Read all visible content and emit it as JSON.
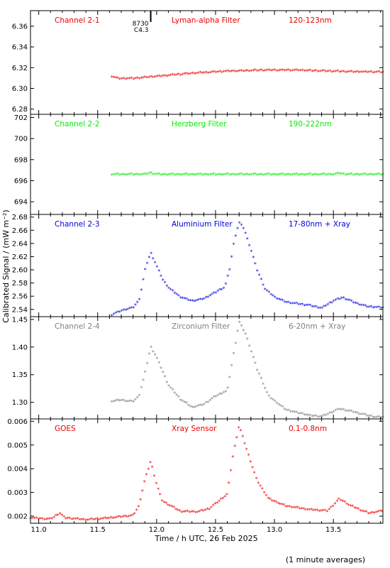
{
  "chart_data": {
    "type": "scatter",
    "ylabel": "Calibrated Signal / (mW m⁻²)",
    "xlabel": "Time / h UTC, 26 Feb 2025",
    "footnote": "(1 minute averages)",
    "x_range": [
      10.93,
      13.92
    ],
    "x_ticks": [
      "11.0",
      "11.5",
      "12.0",
      "12.5",
      "13.0",
      "13.5"
    ],
    "x_tick_values": [
      11.0,
      11.5,
      12.0,
      12.5,
      13.0,
      13.5
    ],
    "marker_labels": {
      "top": "8730",
      "bottom": "C4.3"
    },
    "marker_x": 11.95,
    "panels": [
      {
        "channel": "Channel 2-1",
        "filter": "Lyman-alpha Filter",
        "band": "120-123nm",
        "color": "#ee0000",
        "ylim": [
          6.275,
          6.375
        ],
        "yticks": [
          6.28,
          6.3,
          6.32,
          6.34,
          6.36
        ],
        "ytick_labels": [
          "6.28",
          "6.30",
          "6.32",
          "6.34",
          "6.36"
        ],
        "x_start": 11.62,
        "x_end": 13.92,
        "anchors": [
          [
            11.62,
            6.311
          ],
          [
            11.67,
            6.309
          ],
          [
            11.8,
            6.309
          ],
          [
            12.0,
            6.311
          ],
          [
            12.3,
            6.314
          ],
          [
            12.6,
            6.316
          ],
          [
            12.9,
            6.317
          ],
          [
            13.2,
            6.317
          ],
          [
            13.5,
            6.316
          ],
          [
            13.92,
            6.315
          ]
        ]
      },
      {
        "channel": "Channel 2-2",
        "filter": "Herzberg Filter",
        "band": "190-222nm",
        "color": "#00ee00",
        "ylim": [
          692.8,
          702.3
        ],
        "yticks": [
          694,
          696,
          698,
          700,
          702
        ],
        "ytick_labels": [
          "694",
          "696",
          "698",
          "700",
          "702"
        ],
        "x_start": 11.62,
        "x_end": 13.92,
        "anchors": [
          [
            11.62,
            696.55
          ],
          [
            11.9,
            696.55
          ],
          [
            11.95,
            696.7
          ],
          [
            12.0,
            696.55
          ],
          [
            13.5,
            696.55
          ],
          [
            13.55,
            696.65
          ],
          [
            13.6,
            696.55
          ],
          [
            13.92,
            696.55
          ]
        ]
      },
      {
        "channel": "Channel 2-3",
        "filter": "Aluminium Filter",
        "band": "17-80nm + Xray",
        "color": "#0000dd",
        "ylim": [
          2.529,
          2.684
        ],
        "yticks": [
          2.54,
          2.56,
          2.58,
          2.6,
          2.62,
          2.64,
          2.66,
          2.68
        ],
        "ytick_labels": [
          "2.54",
          "2.56",
          "2.58",
          "2.60",
          "2.62",
          "2.64",
          "2.66",
          "2.68"
        ],
        "x_start": 11.62,
        "x_end": 13.92,
        "anchors": [
          [
            11.62,
            2.531
          ],
          [
            11.7,
            2.537
          ],
          [
            11.8,
            2.542
          ],
          [
            11.85,
            2.552
          ],
          [
            11.88,
            2.578
          ],
          [
            11.91,
            2.605
          ],
          [
            11.95,
            2.625
          ],
          [
            12.0,
            2.605
          ],
          [
            12.05,
            2.585
          ],
          [
            12.1,
            2.572
          ],
          [
            12.2,
            2.558
          ],
          [
            12.3,
            2.552
          ],
          [
            12.4,
            2.555
          ],
          [
            12.5,
            2.565
          ],
          [
            12.58,
            2.573
          ],
          [
            12.62,
            2.6
          ],
          [
            12.66,
            2.645
          ],
          [
            12.7,
            2.671
          ],
          [
            12.74,
            2.662
          ],
          [
            12.8,
            2.63
          ],
          [
            12.85,
            2.6
          ],
          [
            12.92,
            2.57
          ],
          [
            13.0,
            2.558
          ],
          [
            13.1,
            2.55
          ],
          [
            13.3,
            2.545
          ],
          [
            13.4,
            2.541
          ],
          [
            13.5,
            2.552
          ],
          [
            13.58,
            2.557
          ],
          [
            13.7,
            2.548
          ],
          [
            13.8,
            2.543
          ],
          [
            13.92,
            2.542
          ]
        ]
      },
      {
        "channel": "Channel 2-4",
        "filter": "Zirconium Filter",
        "band": "6-20nm + Xray",
        "color": "#808080",
        "ylim": [
          1.27,
          1.455
        ],
        "yticks": [
          1.3,
          1.35,
          1.4,
          1.45
        ],
        "ytick_labels": [
          "1.30",
          "1.35",
          "1.40",
          "1.45"
        ],
        "x_start": 11.62,
        "x_end": 13.92,
        "anchors": [
          [
            11.62,
            1.301
          ],
          [
            11.7,
            1.303
          ],
          [
            11.8,
            1.3
          ],
          [
            11.85,
            1.31
          ],
          [
            11.9,
            1.35
          ],
          [
            11.95,
            1.4
          ],
          [
            12.0,
            1.38
          ],
          [
            12.1,
            1.33
          ],
          [
            12.2,
            1.305
          ],
          [
            12.3,
            1.29
          ],
          [
            12.4,
            1.295
          ],
          [
            12.5,
            1.31
          ],
          [
            12.6,
            1.32
          ],
          [
            12.64,
            1.37
          ],
          [
            12.7,
            1.445
          ],
          [
            12.76,
            1.42
          ],
          [
            12.85,
            1.36
          ],
          [
            12.95,
            1.31
          ],
          [
            13.1,
            1.285
          ],
          [
            13.3,
            1.275
          ],
          [
            13.4,
            1.273
          ],
          [
            13.55,
            1.287
          ],
          [
            13.7,
            1.28
          ],
          [
            13.85,
            1.272
          ],
          [
            13.92,
            1.272
          ]
        ]
      },
      {
        "channel": "GOES",
        "filter": "Xray Sensor",
        "band": "0.1-0.8nm",
        "color": "#ee0000",
        "ylim": [
          0.0017,
          0.0061
        ],
        "yticks": [
          0.002,
          0.003,
          0.004,
          0.005,
          0.006
        ],
        "ytick_labels": [
          "0.002",
          "0.003",
          "0.004",
          "0.005",
          "0.006"
        ],
        "x_start": 10.93,
        "x_end": 13.92,
        "anchors": [
          [
            10.93,
            0.0019
          ],
          [
            11.1,
            0.00185
          ],
          [
            11.18,
            0.0021
          ],
          [
            11.22,
            0.0019
          ],
          [
            11.4,
            0.00182
          ],
          [
            11.6,
            0.0019
          ],
          [
            11.8,
            0.002
          ],
          [
            11.85,
            0.0024
          ],
          [
            11.9,
            0.0035
          ],
          [
            11.95,
            0.0043
          ],
          [
            12.0,
            0.0033
          ],
          [
            12.05,
            0.0026
          ],
          [
            12.2,
            0.00218
          ],
          [
            12.35,
            0.00215
          ],
          [
            12.45,
            0.0023
          ],
          [
            12.55,
            0.0027
          ],
          [
            12.6,
            0.0029
          ],
          [
            12.65,
            0.0046
          ],
          [
            12.7,
            0.0058
          ],
          [
            12.75,
            0.005
          ],
          [
            12.85,
            0.0035
          ],
          [
            12.95,
            0.0027
          ],
          [
            13.1,
            0.0024
          ],
          [
            13.3,
            0.00225
          ],
          [
            13.45,
            0.0022
          ],
          [
            13.55,
            0.0027
          ],
          [
            13.65,
            0.0024
          ],
          [
            13.8,
            0.0021
          ],
          [
            13.92,
            0.0022
          ]
        ]
      }
    ]
  }
}
